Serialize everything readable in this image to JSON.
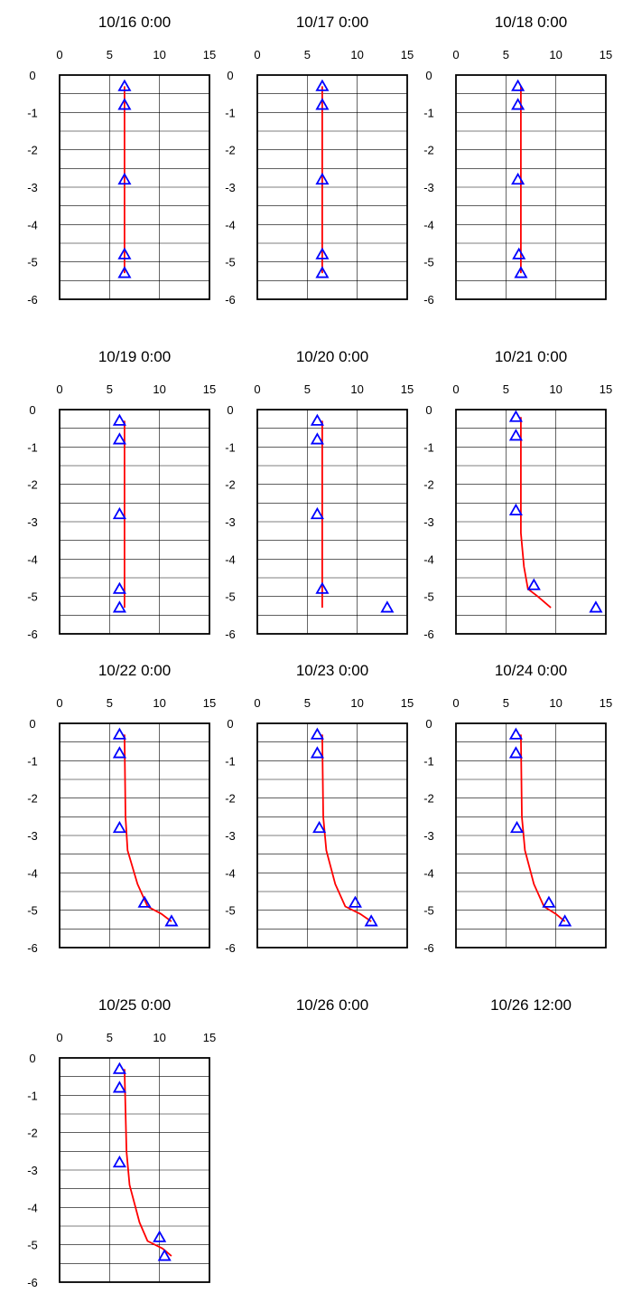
{
  "colors": {
    "line": "#ff0000",
    "marker": "#0000ff",
    "axis": "#000000",
    "grid": "#000000"
  },
  "chart_data": [
    {
      "type": "line",
      "title": "10/16  0:00",
      "xlim": [
        0,
        15
      ],
      "ylim": [
        -6,
        0
      ],
      "xticks": [
        "0",
        "5",
        "10",
        "15"
      ],
      "yticks": [
        "0",
        "-1",
        "-2",
        "-3",
        "-4",
        "-5",
        "-6"
      ],
      "grid": true,
      "markers": [
        [
          6.5,
          -0.3
        ],
        [
          6.5,
          -0.8
        ],
        [
          6.5,
          -2.8
        ],
        [
          6.5,
          -4.8
        ],
        [
          6.5,
          -5.3
        ]
      ],
      "line": [
        [
          6.5,
          -0.3
        ],
        [
          6.5,
          -5.3
        ]
      ]
    },
    {
      "type": "line",
      "title": "10/17  0:00",
      "xlim": [
        0,
        15
      ],
      "ylim": [
        -6,
        0
      ],
      "xticks": [
        "0",
        "5",
        "10",
        "15"
      ],
      "yticks": [
        "0",
        "-1",
        "-2",
        "-3",
        "-4",
        "-5",
        "-6"
      ],
      "grid": true,
      "markers": [
        [
          6.5,
          -0.3
        ],
        [
          6.5,
          -0.8
        ],
        [
          6.5,
          -2.8
        ],
        [
          6.5,
          -4.8
        ],
        [
          6.5,
          -5.3
        ]
      ],
      "line": [
        [
          6.5,
          -0.3
        ],
        [
          6.5,
          -5.3
        ]
      ]
    },
    {
      "type": "line",
      "title": "10/18  0:00",
      "xlim": [
        0,
        15
      ],
      "ylim": [
        -6,
        0
      ],
      "xticks": [
        "0",
        "5",
        "10",
        "15"
      ],
      "yticks": [
        "0",
        "-1",
        "-2",
        "-3",
        "-4",
        "-5",
        "-6"
      ],
      "grid": true,
      "markers": [
        [
          6.2,
          -0.3
        ],
        [
          6.2,
          -0.8
        ],
        [
          6.2,
          -2.8
        ],
        [
          6.3,
          -4.8
        ],
        [
          6.5,
          -5.3
        ]
      ],
      "line": [
        [
          6.5,
          -0.3
        ],
        [
          6.5,
          -5.3
        ]
      ]
    },
    {
      "type": "line",
      "title": "10/19  0:00",
      "xlim": [
        0,
        15
      ],
      "ylim": [
        -6,
        0
      ],
      "xticks": [
        "0",
        "5",
        "10",
        "15"
      ],
      "yticks": [
        "0",
        "-1",
        "-2",
        "-3",
        "-4",
        "-5",
        "-6"
      ],
      "grid": true,
      "markers": [
        [
          6.0,
          -0.3
        ],
        [
          6.0,
          -0.8
        ],
        [
          6.0,
          -2.8
        ],
        [
          6.0,
          -4.8
        ],
        [
          6.0,
          -5.3
        ]
      ],
      "line": [
        [
          6.5,
          -0.3
        ],
        [
          6.5,
          -5.3
        ]
      ]
    },
    {
      "type": "line",
      "title": "10/20  0:00",
      "xlim": [
        0,
        15
      ],
      "ylim": [
        -6,
        0
      ],
      "xticks": [
        "0",
        "5",
        "10",
        "15"
      ],
      "yticks": [
        "0",
        "-1",
        "-2",
        "-3",
        "-4",
        "-5",
        "-6"
      ],
      "grid": true,
      "markers": [
        [
          6.0,
          -0.3
        ],
        [
          6.0,
          -0.8
        ],
        [
          6.0,
          -2.8
        ],
        [
          6.5,
          -4.8
        ],
        [
          13.0,
          -5.3
        ]
      ],
      "line": [
        [
          6.5,
          -0.3
        ],
        [
          6.5,
          -5.3
        ]
      ]
    },
    {
      "type": "line",
      "title": "10/21  0:00",
      "xlim": [
        0,
        15
      ],
      "ylim": [
        -6,
        0
      ],
      "xticks": [
        "0",
        "5",
        "10",
        "15"
      ],
      "yticks": [
        "0",
        "-1",
        "-2",
        "-3",
        "-4",
        "-5",
        "-6"
      ],
      "grid": true,
      "markers": [
        [
          6.0,
          -0.2
        ],
        [
          6.0,
          -0.7
        ],
        [
          6.0,
          -2.7
        ],
        [
          7.8,
          -4.7
        ],
        [
          14.0,
          -5.3
        ]
      ],
      "line": [
        [
          6.5,
          -0.2
        ],
        [
          6.5,
          -3.3
        ],
        [
          6.8,
          -4.2
        ],
        [
          7.2,
          -4.8
        ],
        [
          8.2,
          -5.0
        ],
        [
          9.5,
          -5.3
        ]
      ]
    },
    {
      "type": "line",
      "title": "10/22  0:00",
      "xlim": [
        0,
        15
      ],
      "ylim": [
        -6,
        0
      ],
      "xticks": [
        "0",
        "5",
        "10",
        "15"
      ],
      "yticks": [
        "0",
        "-1",
        "-2",
        "-3",
        "-4",
        "-5",
        "-6"
      ],
      "grid": true,
      "markers": [
        [
          6.0,
          -0.3
        ],
        [
          6.0,
          -0.8
        ],
        [
          6.0,
          -2.8
        ],
        [
          8.5,
          -4.8
        ],
        [
          11.2,
          -5.3
        ]
      ],
      "line": [
        [
          6.5,
          -0.3
        ],
        [
          6.6,
          -2.5
        ],
        [
          6.8,
          -3.4
        ],
        [
          7.8,
          -4.3
        ],
        [
          8.8,
          -4.9
        ],
        [
          10.2,
          -5.1
        ],
        [
          11.2,
          -5.3
        ]
      ]
    },
    {
      "type": "line",
      "title": "10/23  0:00",
      "xlim": [
        0,
        15
      ],
      "ylim": [
        -6,
        0
      ],
      "xticks": [
        "0",
        "5",
        "10",
        "15"
      ],
      "yticks": [
        "0",
        "-1",
        "-2",
        "-3",
        "-4",
        "-5",
        "-6"
      ],
      "grid": true,
      "markers": [
        [
          6.0,
          -0.3
        ],
        [
          6.0,
          -0.8
        ],
        [
          6.2,
          -2.8
        ],
        [
          9.8,
          -4.8
        ],
        [
          11.4,
          -5.3
        ]
      ],
      "line": [
        [
          6.5,
          -0.3
        ],
        [
          6.6,
          -2.5
        ],
        [
          6.9,
          -3.4
        ],
        [
          7.8,
          -4.3
        ],
        [
          8.8,
          -4.9
        ],
        [
          10.3,
          -5.1
        ],
        [
          11.4,
          -5.3
        ]
      ]
    },
    {
      "type": "line",
      "title": "10/24  0:00",
      "xlim": [
        0,
        15
      ],
      "ylim": [
        -6,
        0
      ],
      "xticks": [
        "0",
        "5",
        "10",
        "15"
      ],
      "yticks": [
        "0",
        "-1",
        "-2",
        "-3",
        "-4",
        "-5",
        "-6"
      ],
      "grid": true,
      "markers": [
        [
          6.0,
          -0.3
        ],
        [
          6.0,
          -0.8
        ],
        [
          6.1,
          -2.8
        ],
        [
          9.3,
          -4.8
        ],
        [
          10.9,
          -5.3
        ]
      ],
      "line": [
        [
          6.5,
          -0.3
        ],
        [
          6.6,
          -2.5
        ],
        [
          6.9,
          -3.4
        ],
        [
          7.8,
          -4.3
        ],
        [
          8.8,
          -4.9
        ],
        [
          10.0,
          -5.1
        ],
        [
          10.9,
          -5.3
        ]
      ]
    },
    {
      "type": "line",
      "title": "10/25  0:00",
      "xlim": [
        0,
        15
      ],
      "ylim": [
        -6,
        0
      ],
      "xticks": [
        "0",
        "5",
        "10",
        "15"
      ],
      "yticks": [
        "0",
        "-1",
        "-2",
        "-3",
        "-4",
        "-5",
        "-6"
      ],
      "grid": true,
      "markers": [
        [
          6.0,
          -0.3
        ],
        [
          6.0,
          -0.8
        ],
        [
          6.0,
          -2.8
        ],
        [
          10.0,
          -4.8
        ],
        [
          10.5,
          -5.3
        ]
      ],
      "line": [
        [
          6.5,
          -0.3
        ],
        [
          6.7,
          -2.5
        ],
        [
          7.0,
          -3.4
        ],
        [
          8.0,
          -4.4
        ],
        [
          8.8,
          -4.9
        ],
        [
          10.3,
          -5.1
        ],
        [
          11.2,
          -5.3
        ]
      ]
    },
    {
      "type": "line",
      "title": "10/26  0:00",
      "empty": true
    },
    {
      "type": "line",
      "title": "10/26  12:00",
      "empty": true
    }
  ]
}
